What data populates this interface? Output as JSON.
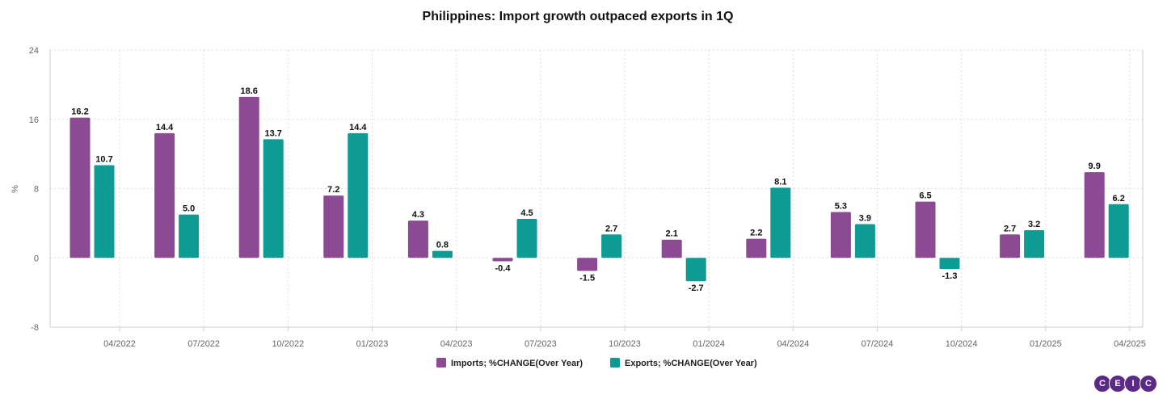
{
  "chart_data": {
    "type": "bar",
    "title": "Philippines: Import growth outpaced exports in 1Q",
    "ylabel": "%",
    "xlabel": "",
    "ylim": [
      -8,
      24
    ],
    "yticks": [
      -8,
      0,
      8,
      16,
      24
    ],
    "xticks": [
      "04/2022",
      "07/2022",
      "10/2022",
      "01/2023",
      "04/2023",
      "07/2023",
      "10/2023",
      "01/2024",
      "04/2024",
      "07/2024",
      "10/2024",
      "01/2025",
      "04/2025"
    ],
    "grid": true,
    "legend_position": "bottom",
    "series": [
      {
        "name": "Imports; %CHANGE(Over Year)",
        "color": "#8b4a92",
        "values": [
          16.2,
          14.4,
          18.6,
          7.2,
          4.3,
          -0.4,
          -1.5,
          2.1,
          2.2,
          5.3,
          6.5,
          2.7,
          9.9
        ]
      },
      {
        "name": "Exports; %CHANGE(Over Year)",
        "color": "#0e9b94",
        "values": [
          10.7,
          5.0,
          13.7,
          14.4,
          0.8,
          4.5,
          2.7,
          -2.7,
          8.1,
          3.9,
          -1.3,
          3.2,
          6.2
        ]
      }
    ]
  },
  "brand": {
    "letters": [
      "C",
      "E",
      "I",
      "C"
    ]
  }
}
